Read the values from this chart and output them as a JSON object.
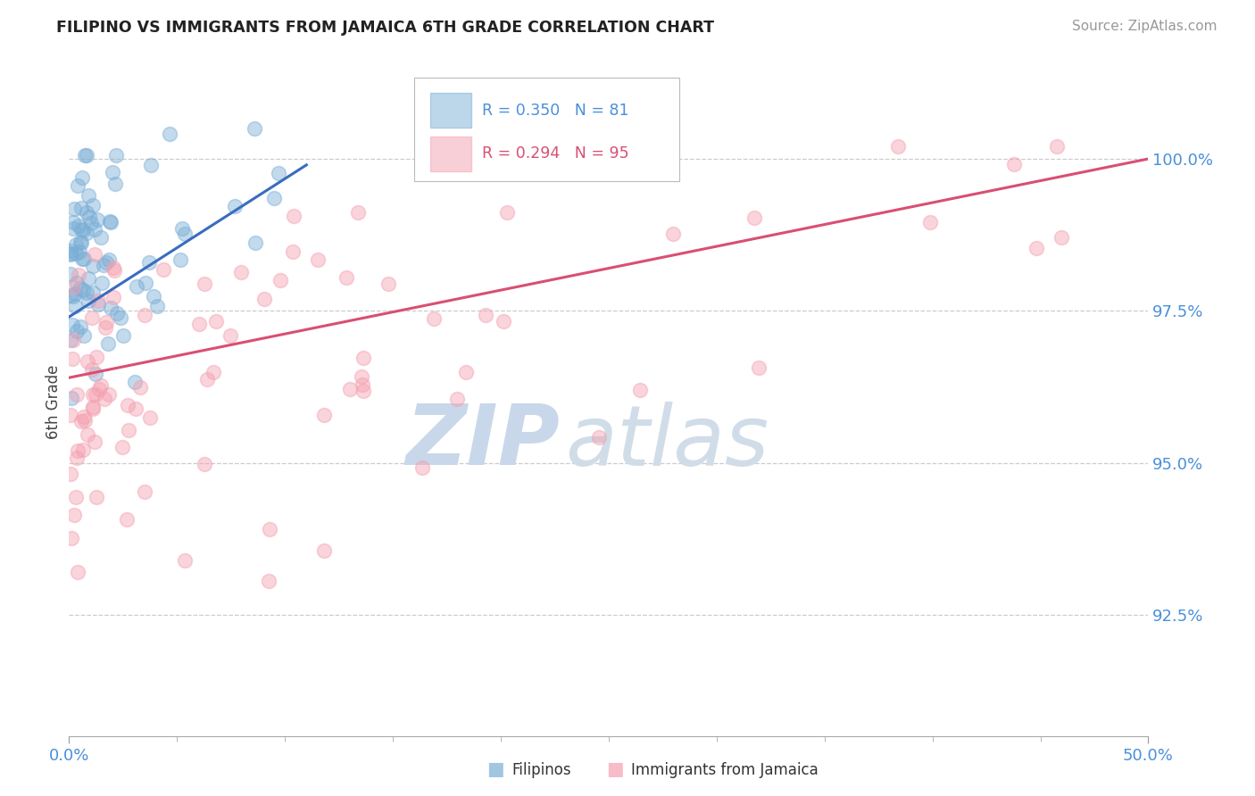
{
  "title": "FILIPINO VS IMMIGRANTS FROM JAMAICA 6TH GRADE CORRELATION CHART",
  "source": "Source: ZipAtlas.com",
  "ylabel": "6th Grade",
  "ytick_values": [
    92.5,
    95.0,
    97.5,
    100.0
  ],
  "ytick_labels": [
    "92.5%",
    "95.0%",
    "97.5%",
    "100.0%"
  ],
  "xlim": [
    0.0,
    50.0
  ],
  "ylim": [
    90.5,
    101.5
  ],
  "blue_color": "#7aaed6",
  "pink_color": "#f4a0b0",
  "blue_line_color": "#3a6cbf",
  "pink_line_color": "#d94f72",
  "background_color": "#FFFFFF",
  "watermark_zip": "ZIP",
  "watermark_atlas": "atlas",
  "legend_text1": "R = 0.350   N = 81",
  "legend_text2": "R = 0.294   N = 95",
  "bottom_legend1": "Filipinos",
  "bottom_legend2": "Immigrants from Jamaica"
}
